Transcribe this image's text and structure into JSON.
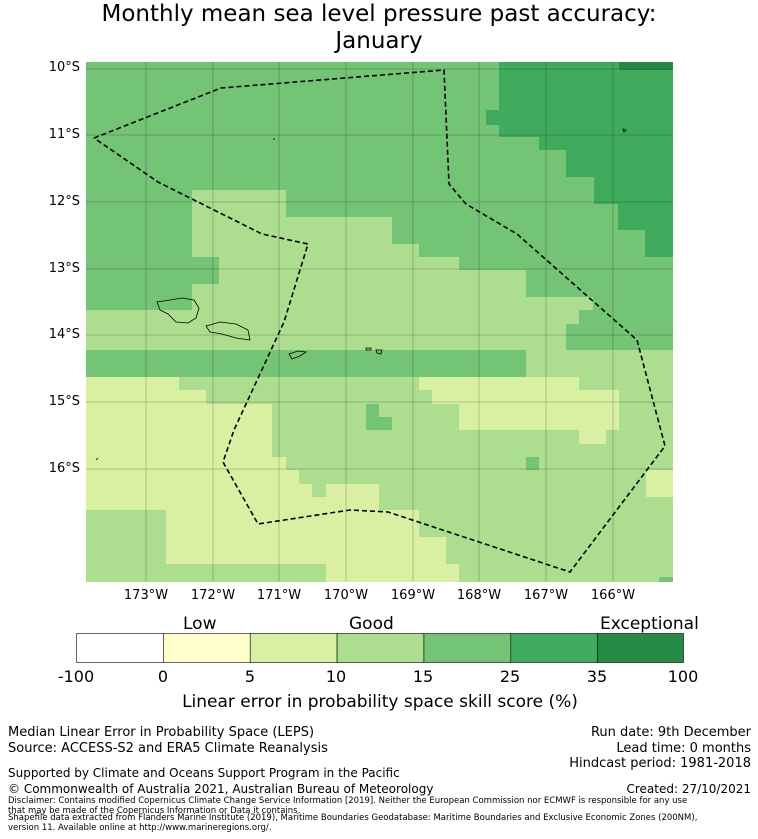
{
  "title": {
    "line1": "Monthly mean sea level pressure past accuracy:",
    "line2": "January"
  },
  "map": {
    "region": "Samoa",
    "lat_labels": [
      "10°S",
      "11°S",
      "12°S",
      "13°S",
      "14°S",
      "15°S",
      "16°S"
    ],
    "lon_labels": [
      "173°W",
      "172°W",
      "171°W",
      "170°W",
      "169°W",
      "168°W",
      "167°W",
      "166°W"
    ],
    "lat_range": [
      -17.8,
      -10.0
    ],
    "lon_range": [
      -174.0,
      -165.2
    ],
    "colors": {
      "exceptional": "#238b45",
      "c35": "#41ab5d",
      "c25": "#74c476",
      "c15": "#addd8e",
      "c10": "#d9f0a3",
      "c5": "#ffffcc",
      "low": "#ffffff"
    }
  },
  "legend": {
    "categories": [
      "Low",
      "Good",
      "Exceptional"
    ],
    "ticks": [
      "-100",
      "0",
      "5",
      "10",
      "15",
      "25",
      "35",
      "100"
    ],
    "colors": [
      "#ffffff",
      "#ffffcc",
      "#d9f0a3",
      "#addd8e",
      "#74c476",
      "#41ab5d",
      "#238b45"
    ],
    "label": "Linear error in probability space skill score (%)"
  },
  "footer": {
    "line1": "Median Linear Error in Probability Space (LEPS)",
    "line2": "Source: ACCESS-S2 and ERA5 Climate Reanalysis",
    "support": "Supported by Climate and Oceans Support Program in the Pacific",
    "copyright": "© Commonwealth of Australia 2021, Australian Bureau of Meteorology",
    "run_date": "Run date: 9th December",
    "lead_time": "Lead time: 0 months",
    "hindcast": "Hindcast period: 1981-2018",
    "created": "Created: 27/10/2021",
    "disclaimer1": "Disclaimer: Contains modified Copernicus Climate Change Service Information [2019]. Neither the European Commission nor ECMWF is responsible for any use",
    "disclaimer2": "that may be made of the Copernicus Information or Data it contains.",
    "shapefile1": "Shapefile data extracted from Flanders Marine Institute (2019), Maritime Boundaries Geodatabase: Maritime Boundaries and Exclusive Economic Zones (200NM),",
    "shapefile2": "version 11. Available online at http://www.marineregions.org/."
  }
}
